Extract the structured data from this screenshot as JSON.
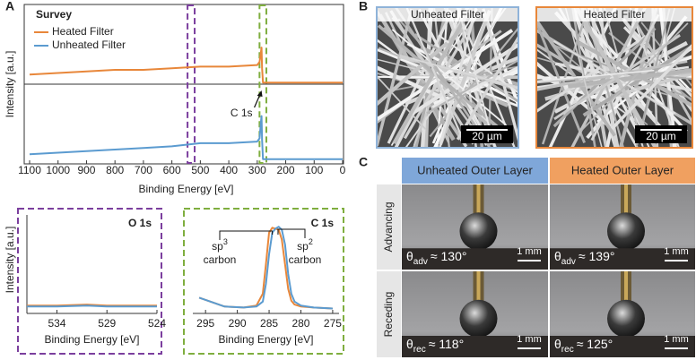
{
  "panel_labels": [
    "A",
    "B",
    "C"
  ],
  "chart_data": [
    {
      "type": "line",
      "title": "Survey",
      "xlabel": "Binding Energy [eV]",
      "ylabel": "Intensity [a.u.]",
      "xlim": [
        1100,
        0
      ],
      "xticks": [
        1100,
        1000,
        900,
        800,
        700,
        600,
        500,
        400,
        300,
        200,
        100,
        0
      ],
      "ylim": [
        0,
        10
      ],
      "x": [
        1100,
        1000,
        900,
        800,
        700,
        600,
        500,
        400,
        300,
        292,
        287,
        285,
        283,
        280,
        270,
        200,
        100,
        0
      ],
      "series": [
        {
          "name": "Heated Filter",
          "color": "#e8873a",
          "values": [
            5.6,
            5.7,
            5.8,
            5.9,
            5.9,
            6.0,
            6.1,
            6.1,
            6.2,
            6.4,
            7.0,
            7.3,
            6.0,
            5.1,
            5.1,
            5.1,
            5.1,
            5.1
          ]
        },
        {
          "name": "Unheated Filter",
          "color": "#5b9bd0",
          "values": [
            0.6,
            0.7,
            0.8,
            0.9,
            1.0,
            1.1,
            1.3,
            1.3,
            1.4,
            1.6,
            2.6,
            3.0,
            1.5,
            0.3,
            0.3,
            0.3,
            0.3,
            0.3
          ]
        }
      ],
      "regions": [
        {
          "xlim": [
            545,
            520
          ],
          "color": "#7b3f9e"
        },
        {
          "xlim": [
            292,
            268
          ],
          "color": "#7fae3f"
        }
      ],
      "annotation": "C 1s"
    },
    {
      "type": "line",
      "title": "O 1s",
      "xlabel": "Binding Energy [eV]",
      "ylabel": "Intensity [a.u.]",
      "xlim": [
        537,
        524
      ],
      "xticks": [
        534,
        529,
        524
      ],
      "ylim": [
        0,
        10
      ],
      "x": [
        537,
        534,
        531,
        529,
        527,
        524
      ],
      "series": [
        {
          "name": null,
          "color": "#e8873a",
          "values": [
            0.8,
            0.8,
            0.9,
            0.8,
            0.8,
            0.8
          ]
        },
        {
          "name": null,
          "color": "#5b9bd0",
          "values": [
            0.7,
            0.7,
            0.8,
            0.7,
            0.7,
            0.7
          ]
        }
      ]
    },
    {
      "type": "line",
      "title": "C 1s",
      "xlabel": "Binding Energy [eV]",
      "xlim": [
        297,
        274
      ],
      "xticks": [
        295,
        290,
        285,
        280,
        275
      ],
      "ylim": [
        0,
        10
      ],
      "x": [
        296,
        292,
        289,
        287,
        286,
        285.5,
        285,
        284.5,
        284,
        283.5,
        283,
        282.5,
        282,
        281.5,
        281,
        280,
        278,
        275
      ],
      "series": [
        {
          "name": null,
          "color": "#e8873a",
          "values": [
            1.6,
            0.7,
            0.6,
            0.8,
            2,
            5,
            8.2,
            8.7,
            8.6,
            8.5,
            7.5,
            5,
            2.5,
            1.3,
            0.9,
            0.7,
            0.6,
            0.5
          ]
        },
        {
          "name": null,
          "color": "#5b9bd0",
          "values": [
            1.6,
            0.7,
            0.6,
            0.7,
            1.2,
            3,
            6,
            8.2,
            8.6,
            8.8,
            8.5,
            7,
            4,
            2,
            1.2,
            0.8,
            0.6,
            0.5
          ]
        }
      ],
      "annotations": [
        {
          "main": "sp",
          "sup": "3",
          "line2": "carbon"
        },
        {
          "main": "sp",
          "sup": "2",
          "line2": "carbon"
        }
      ]
    }
  ],
  "sem": {
    "images": [
      {
        "label": "Unheated Filter",
        "scale": "20 µm"
      },
      {
        "label": "Heated Filter",
        "scale": "20 µm"
      }
    ]
  },
  "contact_angle": {
    "columns": [
      "Unheated Outer Layer",
      "Heated Outer Layer"
    ],
    "rows": [
      "Advancing",
      "Receding"
    ],
    "cells": [
      [
        {
          "symbol": "θ",
          "sub": "adv",
          "value": "≈ 130°",
          "scale": "1 mm"
        },
        {
          "symbol": "θ",
          "sub": "adv",
          "value": "≈ 139°",
          "scale": "1 mm"
        }
      ],
      [
        {
          "symbol": "θ",
          "sub": "rec",
          "value": "≈ 118°",
          "scale": "1 mm"
        },
        {
          "symbol": "θ",
          "sub": "rec",
          "value": "≈ 125°",
          "scale": "1 mm"
        }
      ]
    ]
  }
}
